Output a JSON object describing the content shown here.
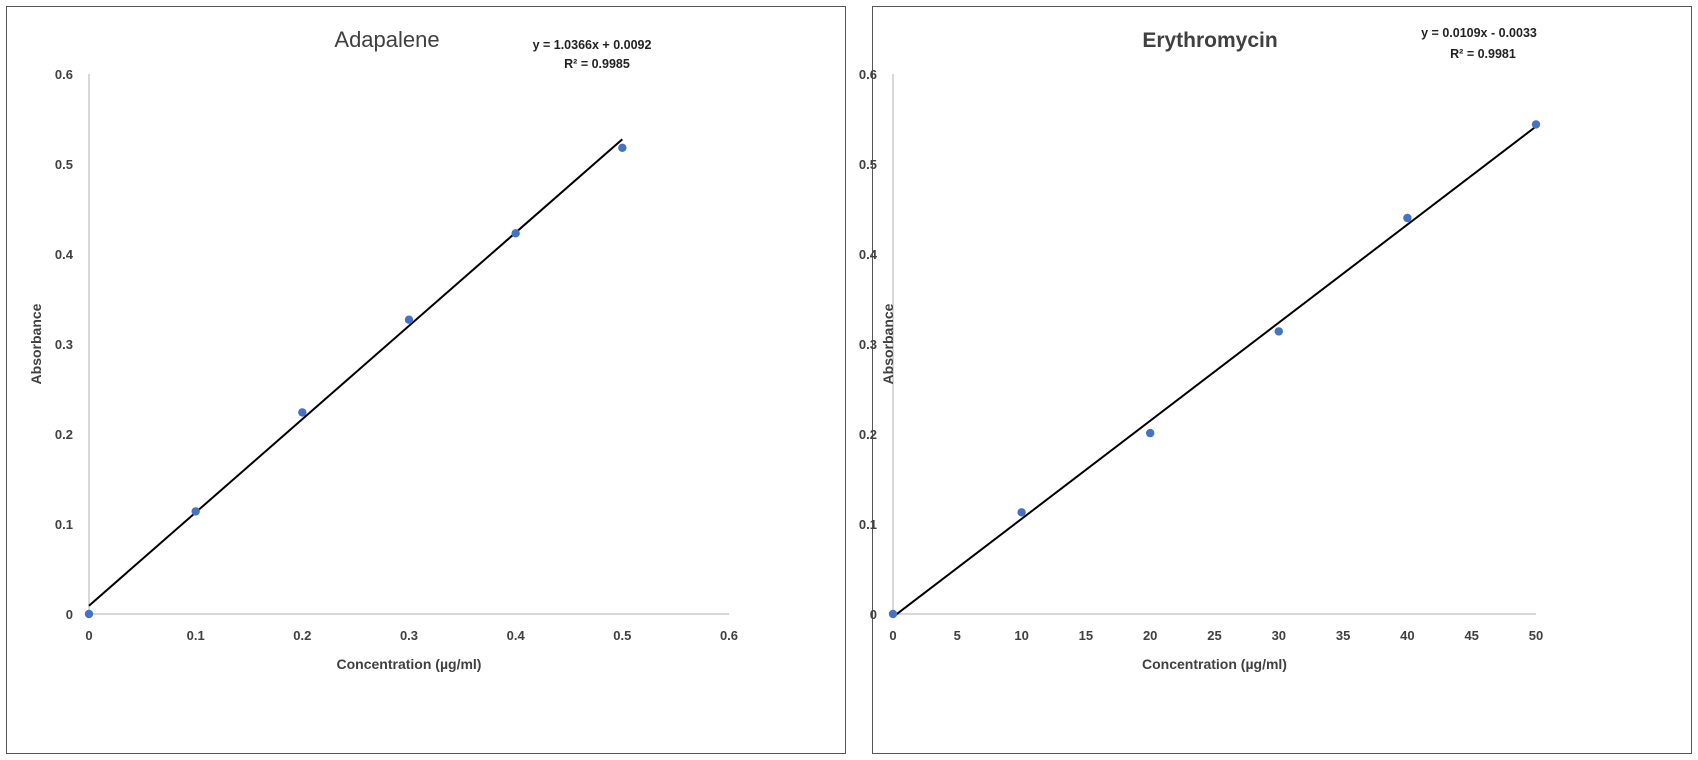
{
  "chart_data": [
    {
      "type": "scatter",
      "title": "Adapalene",
      "xlabel": "Concentration (µg/ml)",
      "ylabel": "Absorbance",
      "xlim": [
        0,
        0.6
      ],
      "ylim": [
        0,
        0.6
      ],
      "x_ticks": [
        0,
        0.1,
        0.2,
        0.3,
        0.4,
        0.5,
        0.6
      ],
      "y_ticks": [
        0,
        0.1,
        0.2,
        0.3,
        0.4,
        0.5,
        0.6
      ],
      "x_tick_labels": [
        "0",
        "0.1",
        "0.2",
        "0.3",
        "0.4",
        "0.5",
        "0.6"
      ],
      "y_tick_labels": [
        "0",
        "0.1",
        "0.2",
        "0.3",
        "0.4",
        "0.5",
        "0.6"
      ],
      "grid": false,
      "legend": "none",
      "series": [
        {
          "x": [
            0,
            0.1,
            0.2,
            0.3,
            0.4,
            0.5
          ],
          "y": [
            0,
            0.114,
            0.224,
            0.327,
            0.423,
            0.518
          ]
        }
      ],
      "trendline": {
        "type": "linear",
        "slope": 1.0366,
        "intercept": 0.0092
      },
      "equation": "y = 1.0366x + 0.0092",
      "r_squared": "R² = 0.9985",
      "point_color": "#4472C4",
      "line_color": "#000000"
    },
    {
      "type": "scatter",
      "title": "Erythromycin",
      "xlabel": "Concentration (µg/ml)",
      "ylabel": "Absorbance",
      "xlim": [
        0,
        50
      ],
      "ylim": [
        0,
        0.6
      ],
      "x_ticks": [
        0,
        5,
        10,
        15,
        20,
        25,
        30,
        35,
        40,
        45,
        50
      ],
      "y_ticks": [
        0,
        0.1,
        0.2,
        0.3,
        0.4,
        0.5,
        0.6
      ],
      "x_tick_labels": [
        "0",
        "5",
        "10",
        "15",
        "20",
        "25",
        "30",
        "35",
        "40",
        "45",
        "50"
      ],
      "y_tick_labels": [
        "0",
        "0.1",
        "0.2",
        "0.3",
        "0.4",
        "0.5",
        "0.6"
      ],
      "grid": false,
      "legend": "none",
      "series": [
        {
          "x": [
            0,
            10,
            20,
            30,
            40,
            50
          ],
          "y": [
            0,
            0.113,
            0.201,
            0.314,
            0.44,
            0.544
          ]
        }
      ],
      "trendline": {
        "type": "linear",
        "slope": 0.0109,
        "intercept": -0.0033
      },
      "equation": "y = 0.0109x - 0.0033",
      "r_squared": "R² = 0.9981",
      "point_color": "#4472C4",
      "line_color": "#000000"
    }
  ]
}
